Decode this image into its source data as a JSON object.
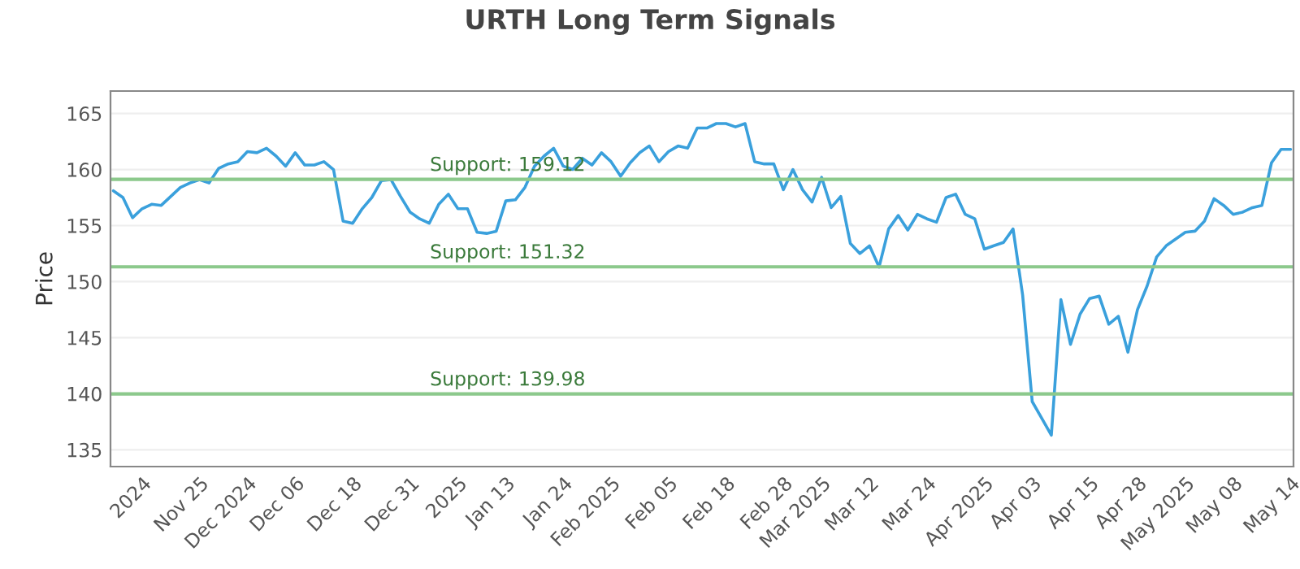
{
  "chart_data": {
    "type": "line",
    "title": "URTH Long Term Signals",
    "ylabel": "Price",
    "categories": [
      null,
      null,
      null,
      "2024",
      null,
      null,
      null,
      null,
      null,
      "Nov 25",
      null,
      null,
      null,
      null,
      "Dec 2024",
      null,
      null,
      null,
      null,
      "Dec 06",
      null,
      null,
      null,
      null,
      null,
      "Dec 18",
      null,
      null,
      null,
      null,
      null,
      "Dec 31",
      null,
      null,
      null,
      null,
      "2025",
      null,
      null,
      null,
      null,
      "Jan 13",
      null,
      null,
      null,
      null,
      null,
      "Jan 24",
      null,
      null,
      null,
      null,
      "Feb 2025",
      null,
      null,
      null,
      null,
      null,
      "Feb 05",
      null,
      null,
      null,
      null,
      null,
      "Feb 18",
      null,
      null,
      null,
      null,
      null,
      "Feb 28",
      null,
      null,
      null,
      "Mar 2025",
      null,
      null,
      null,
      null,
      "Mar 12",
      null,
      null,
      null,
      null,
      null,
      "Mar 24",
      null,
      null,
      null,
      null,
      null,
      "Apr 2025",
      null,
      null,
      null,
      null,
      "Apr 03",
      null,
      null,
      null,
      null,
      null,
      "Apr 15",
      null,
      null,
      null,
      null,
      "Apr 28",
      null,
      null,
      null,
      null,
      "May 2025",
      null,
      null,
      null,
      null,
      "May 08",
      null,
      null,
      null,
      null,
      null,
      "May 14"
    ],
    "series": [
      {
        "color": "#3aa0dc",
        "values": [
          158.1,
          157.5,
          155.7,
          156.5,
          156.9,
          156.8,
          157.6,
          158.4,
          158.8,
          159.1,
          158.8,
          160.1,
          160.5,
          160.7,
          161.6,
          161.5,
          161.9,
          161.2,
          160.3,
          161.5,
          160.4,
          160.4,
          160.7,
          160.0,
          155.4,
          155.2,
          156.5,
          157.5,
          159.0,
          159.1,
          157.6,
          156.2,
          155.6,
          155.2,
          156.9,
          157.8,
          156.5,
          156.5,
          154.4,
          154.3,
          154.5,
          157.2,
          157.3,
          158.4,
          160.3,
          161.2,
          161.9,
          160.3,
          160.0,
          161.0,
          160.4,
          161.5,
          160.7,
          159.4,
          160.6,
          161.5,
          162.1,
          160.7,
          161.6,
          162.1,
          161.9,
          163.7,
          163.7,
          164.1,
          164.1,
          163.8,
          164.1,
          160.7,
          160.5,
          160.5,
          158.2,
          160.0,
          158.2,
          157.1,
          159.3,
          156.6,
          157.6,
          153.4,
          152.5,
          153.2,
          151.3,
          154.7,
          155.9,
          154.6,
          156.0,
          155.6,
          155.3,
          157.5,
          157.8,
          156.0,
          155.6,
          152.9,
          153.2,
          153.5,
          154.7,
          148.8,
          139.3,
          137.8,
          136.3,
          148.4,
          144.4,
          147.1,
          148.5,
          148.7,
          146.2,
          146.9,
          143.7,
          147.5,
          149.6,
          152.2,
          153.2,
          153.8,
          154.4,
          154.5,
          155.4,
          157.4,
          156.8,
          156.0,
          156.2,
          156.6,
          156.8,
          160.6,
          161.8,
          161.8
        ]
      }
    ],
    "ylim": [
      133.5,
      167
    ],
    "yticks": [
      135,
      140,
      145,
      150,
      155,
      160,
      165
    ],
    "ref_lines": [
      {
        "axis": "y",
        "value": 159.12,
        "label": "Support: 159.12",
        "color": "#8cc98c"
      },
      {
        "axis": "y",
        "value": 151.32,
        "label": "Support: 151.32",
        "color": "#8cc98c"
      },
      {
        "axis": "y",
        "value": 139.98,
        "label": "Support: 139.98",
        "color": "#8cc98c"
      }
    ],
    "grid": "y",
    "legend": false,
    "marker": "none",
    "line_style": "solid"
  }
}
